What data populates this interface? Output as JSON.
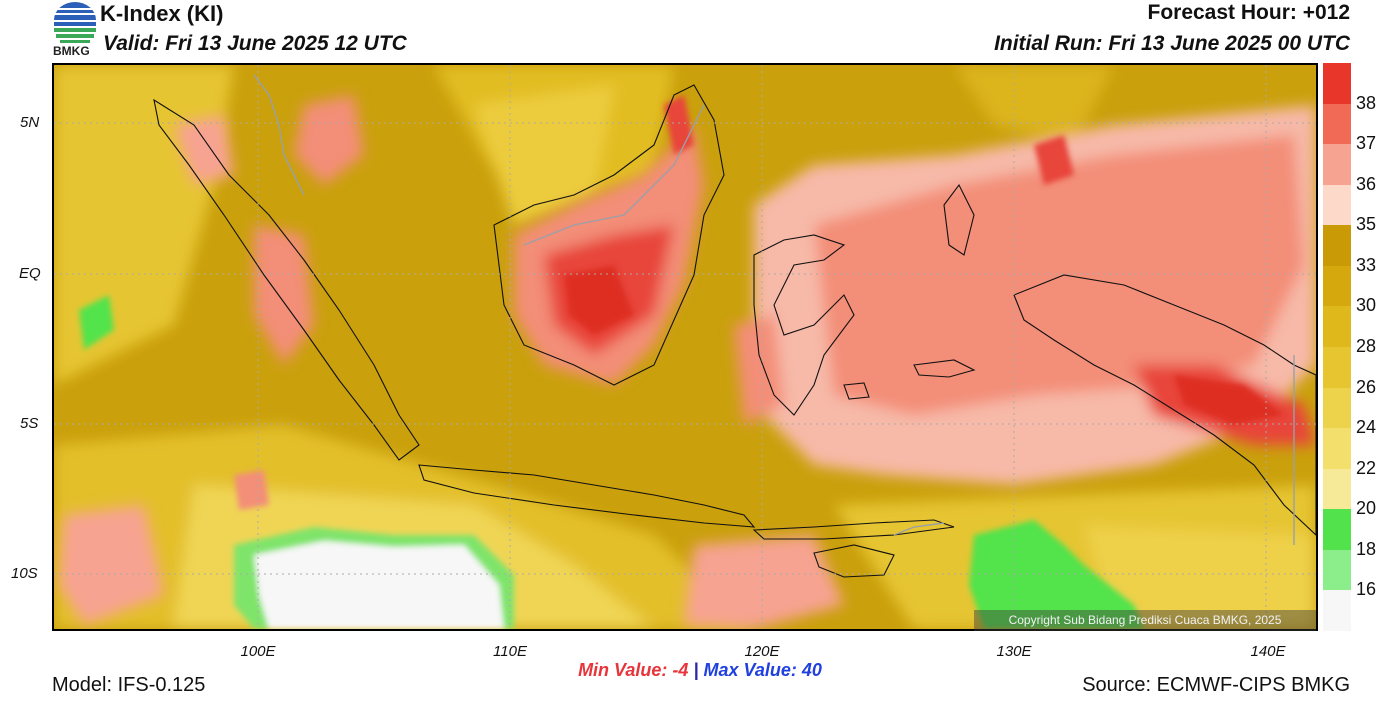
{
  "header": {
    "title": "K-Index (KI)",
    "valid": "Valid: Fri 13 June 2025 12 UTC",
    "forecast_hour": "Forecast Hour: +012",
    "initial_run": "Initial Run: Fri 13 June 2025 00 UTC",
    "logo_text": "BMKG"
  },
  "axes": {
    "lat_labels": [
      "5N",
      "EQ",
      "5S",
      "10S"
    ],
    "lon_labels": [
      "100E",
      "110E",
      "120E",
      "130E",
      "140E"
    ]
  },
  "colorbar": {
    "labels": [
      "38",
      "37",
      "36",
      "35",
      "33",
      "30",
      "28",
      "26",
      "24",
      "22",
      "20",
      "18",
      "16"
    ],
    "colors": [
      "#e8372a",
      "#f06a55",
      "#f7a392",
      "#fdd9c9",
      "#c99a06",
      "#d5a90e",
      "#dfb81c",
      "#e6c530",
      "#edd24b",
      "#f2df6c",
      "#f6ea99",
      "#52e34c",
      "#8cee8a",
      "#f7f7f7"
    ]
  },
  "copyright": "Copyright Sub Bidang Prediksi Cuaca BMKG, 2025",
  "stats": {
    "min_label": "Min Value:",
    "min_value": "-4",
    "separator": "|",
    "max_label": "Max Value:",
    "max_value": "40"
  },
  "footer": {
    "model": "Model: IFS-0.125",
    "source": "Source: ECMWF-CIPS BMKG"
  }
}
